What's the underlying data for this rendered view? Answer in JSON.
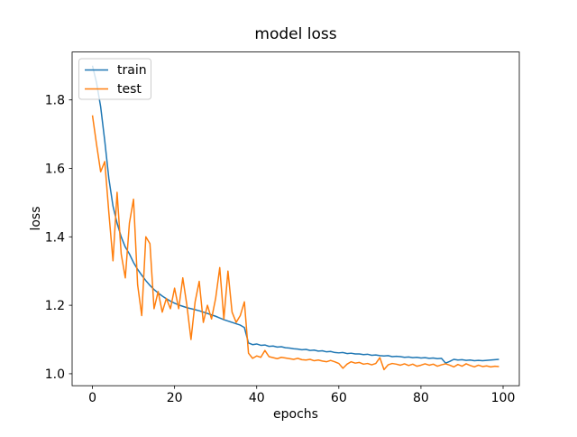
{
  "chart_data": {
    "type": "line",
    "title": "model loss",
    "xlabel": "epochs",
    "ylabel": "loss",
    "xlim": [
      -4.95,
      103.95
    ],
    "ylim": [
      0.965,
      1.94
    ],
    "x_ticks": [
      0,
      20,
      40,
      60,
      80,
      100
    ],
    "x_tick_labels": [
      "0",
      "20",
      "40",
      "60",
      "80",
      "100"
    ],
    "y_ticks": [
      1.0,
      1.2,
      1.4,
      1.6,
      1.8
    ],
    "y_tick_labels": [
      "1.0",
      "1.2",
      "1.4",
      "1.6",
      "1.8"
    ],
    "grid": false,
    "legend_position": "upper left",
    "frame_color": "#000000",
    "legend_border_color": "#cccccc",
    "x": [
      0,
      1,
      2,
      3,
      4,
      5,
      6,
      7,
      8,
      9,
      10,
      11,
      12,
      13,
      14,
      15,
      16,
      17,
      18,
      19,
      20,
      21,
      22,
      23,
      24,
      25,
      26,
      27,
      28,
      29,
      30,
      31,
      32,
      33,
      34,
      35,
      36,
      37,
      38,
      39,
      40,
      41,
      42,
      43,
      44,
      45,
      46,
      47,
      48,
      49,
      50,
      51,
      52,
      53,
      54,
      55,
      56,
      57,
      58,
      59,
      60,
      61,
      62,
      63,
      64,
      65,
      66,
      67,
      68,
      69,
      70,
      71,
      72,
      73,
      74,
      75,
      76,
      77,
      78,
      79,
      80,
      81,
      82,
      83,
      84,
      85,
      86,
      87,
      88,
      89,
      90,
      91,
      92,
      93,
      94,
      95,
      96,
      97,
      98,
      99
    ],
    "series": [
      {
        "name": "train",
        "color": "#1f77b4",
        "values": [
          1.9,
          1.85,
          1.78,
          1.68,
          1.57,
          1.49,
          1.44,
          1.4,
          1.37,
          1.35,
          1.325,
          1.305,
          1.288,
          1.272,
          1.258,
          1.246,
          1.236,
          1.227,
          1.219,
          1.212,
          1.206,
          1.201,
          1.197,
          1.193,
          1.19,
          1.187,
          1.184,
          1.18,
          1.176,
          1.172,
          1.168,
          1.163,
          1.158,
          1.154,
          1.15,
          1.146,
          1.142,
          1.135,
          1.09,
          1.085,
          1.087,
          1.083,
          1.084,
          1.08,
          1.081,
          1.078,
          1.079,
          1.076,
          1.075,
          1.073,
          1.072,
          1.07,
          1.071,
          1.068,
          1.069,
          1.066,
          1.067,
          1.064,
          1.065,
          1.062,
          1.061,
          1.062,
          1.059,
          1.06,
          1.058,
          1.058,
          1.056,
          1.057,
          1.054,
          1.055,
          1.053,
          1.052,
          1.053,
          1.05,
          1.051,
          1.05,
          1.048,
          1.049,
          1.047,
          1.048,
          1.046,
          1.047,
          1.045,
          1.046,
          1.044,
          1.045,
          1.031,
          1.036,
          1.042,
          1.04,
          1.041,
          1.039,
          1.04,
          1.038,
          1.039,
          1.038,
          1.039,
          1.04,
          1.041,
          1.042
        ]
      },
      {
        "name": "test",
        "color": "#ff7f0e",
        "values": [
          1.755,
          1.67,
          1.59,
          1.62,
          1.47,
          1.33,
          1.53,
          1.35,
          1.28,
          1.44,
          1.51,
          1.26,
          1.17,
          1.4,
          1.38,
          1.19,
          1.24,
          1.18,
          1.22,
          1.19,
          1.25,
          1.19,
          1.28,
          1.2,
          1.1,
          1.21,
          1.27,
          1.15,
          1.2,
          1.16,
          1.22,
          1.31,
          1.16,
          1.3,
          1.18,
          1.15,
          1.17,
          1.21,
          1.06,
          1.045,
          1.052,
          1.048,
          1.068,
          1.05,
          1.047,
          1.044,
          1.048,
          1.046,
          1.044,
          1.042,
          1.045,
          1.041,
          1.04,
          1.042,
          1.038,
          1.04,
          1.037,
          1.035,
          1.039,
          1.035,
          1.03,
          1.016,
          1.028,
          1.035,
          1.031,
          1.033,
          1.028,
          1.03,
          1.026,
          1.03,
          1.047,
          1.012,
          1.026,
          1.03,
          1.028,
          1.025,
          1.029,
          1.024,
          1.028,
          1.022,
          1.025,
          1.029,
          1.025,
          1.028,
          1.022,
          1.026,
          1.029,
          1.025,
          1.02,
          1.027,
          1.022,
          1.029,
          1.024,
          1.02,
          1.025,
          1.021,
          1.023,
          1.02,
          1.022,
          1.021
        ]
      }
    ]
  }
}
